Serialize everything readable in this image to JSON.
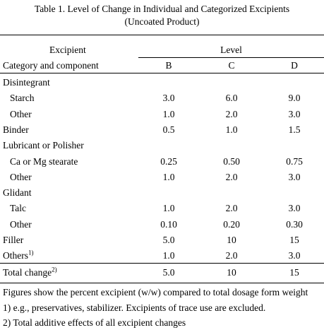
{
  "title_line1": "Table 1. Level of Change in Individual and Categorized Excipients",
  "title_line2": "(Uncoated Product)",
  "header": {
    "excipient": "Excipient",
    "level": "Level",
    "category": "Category and component",
    "cols": [
      "B",
      "C",
      "D"
    ]
  },
  "rows": [
    {
      "label": "Disintegrant",
      "indent": false,
      "values": [
        "",
        "",
        ""
      ]
    },
    {
      "label": "Starch",
      "indent": true,
      "values": [
        "3.0",
        "6.0",
        "9.0"
      ]
    },
    {
      "label": "Other",
      "indent": true,
      "values": [
        "1.0",
        "2.0",
        "3.0"
      ]
    },
    {
      "label": "Binder",
      "indent": false,
      "values": [
        "0.5",
        "1.0",
        "1.5"
      ]
    },
    {
      "label": "Lubricant or Polisher",
      "indent": false,
      "values": [
        "",
        "",
        ""
      ]
    },
    {
      "label": "Ca or Mg stearate",
      "indent": true,
      "values": [
        "0.25",
        "0.50",
        "0.75"
      ]
    },
    {
      "label": "Other",
      "indent": true,
      "values": [
        "1.0",
        "2.0",
        "3.0"
      ]
    },
    {
      "label": "Glidant",
      "indent": false,
      "values": [
        "",
        "",
        ""
      ]
    },
    {
      "label": "Talc",
      "indent": true,
      "values": [
        "1.0",
        "2.0",
        "3.0"
      ]
    },
    {
      "label": "Other",
      "indent": true,
      "values": [
        "0.10",
        "0.20",
        "0.30"
      ]
    },
    {
      "label": "Filler",
      "indent": false,
      "values": [
        "5.0",
        "10",
        "15"
      ]
    },
    {
      "label": "Others",
      "sup": "1)",
      "indent": false,
      "values": [
        "1.0",
        "2.0",
        "3.0"
      ]
    }
  ],
  "total": {
    "label": "Total change",
    "sup": "2)",
    "values": [
      "5.0",
      "10",
      "15"
    ]
  },
  "footnotes": [
    "Figures show the percent excipient (w/w) compared to total dosage form weight",
    "1) e.g., preservatives, stabilizer. Excipients of trace use are excluded.",
    "2) Total additive effects of all excipient changes"
  ]
}
